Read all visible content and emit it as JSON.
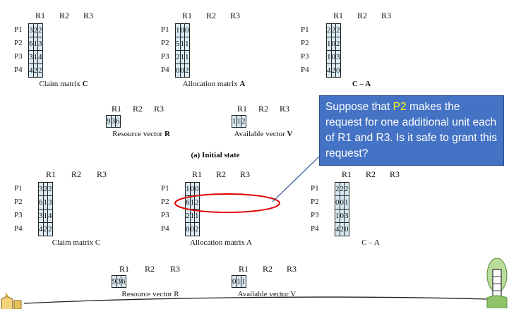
{
  "columns": [
    "R1",
    "R2",
    "R3"
  ],
  "rows": [
    "P1",
    "P2",
    "P3",
    "P4"
  ],
  "initial": {
    "claim": {
      "caption_text": "Claim matrix ",
      "caption_bold": "C",
      "values": [
        [
          "3",
          "2",
          "2"
        ],
        [
          "6",
          "1",
          "3"
        ],
        [
          "3",
          "1",
          "4"
        ],
        [
          "4",
          "2",
          "2"
        ]
      ]
    },
    "allocation": {
      "caption_text": "Allocation matrix ",
      "caption_bold": "A",
      "values": [
        [
          "1",
          "0",
          "0"
        ],
        [
          "5",
          "1",
          "1"
        ],
        [
          "2",
          "1",
          "1"
        ],
        [
          "0",
          "0",
          "2"
        ]
      ]
    },
    "need": {
      "caption_text": "",
      "caption_bold": "C – A",
      "values": [
        [
          "2",
          "2",
          "2"
        ],
        [
          "1",
          "0",
          "2"
        ],
        [
          "1",
          "0",
          "3"
        ],
        [
          "4",
          "2",
          "0"
        ]
      ]
    },
    "resource": {
      "caption_text": "Resource vector ",
      "caption_bold": "R",
      "values": [
        "9",
        "3",
        "6"
      ]
    },
    "available": {
      "caption_text": "Available vector ",
      "caption_bold": "V",
      "values": [
        "1",
        "1",
        "2"
      ]
    },
    "state_label": "(a) Initial state"
  },
  "request": {
    "claim": {
      "caption_text": "Claim matrix C",
      "caption_bold": "",
      "values": [
        [
          "3",
          "2",
          "2"
        ],
        [
          "6",
          "1",
          "3"
        ],
        [
          "3",
          "1",
          "4"
        ],
        [
          "4",
          "2",
          "2"
        ]
      ]
    },
    "allocation": {
      "caption_text": "Allocation matrix A",
      "caption_bold": "",
      "values": [
        [
          "1",
          "0",
          "0"
        ],
        [
          "6",
          "1",
          "2"
        ],
        [
          "2",
          "1",
          "1"
        ],
        [
          "0",
          "0",
          "2"
        ]
      ]
    },
    "need": {
      "caption_text": "C – A",
      "caption_bold": "",
      "values": [
        [
          "2",
          "2",
          "2"
        ],
        [
          "0",
          "0",
          "1"
        ],
        [
          "1",
          "0",
          "3"
        ],
        [
          "4",
          "2",
          "0"
        ]
      ]
    },
    "resource": {
      "caption_text": "Resource vector R",
      "caption_bold": "",
      "values": [
        "9",
        "3",
        "6"
      ]
    },
    "available": {
      "caption_text": "Available vector V",
      "caption_bold": "",
      "values": [
        "0",
        "1",
        "1"
      ]
    }
  },
  "callout": {
    "before": "Suppose that ",
    "highlight": "P2",
    "after": " makes the request for one additional unit each of R1 and R3.  Is it safe to grant this request?"
  },
  "colors": {
    "cell_fill": "#d7e8f3",
    "callout_fill": "#4472c4",
    "highlight_text": "#ffff00",
    "ellipse_stroke": "#e00000"
  }
}
